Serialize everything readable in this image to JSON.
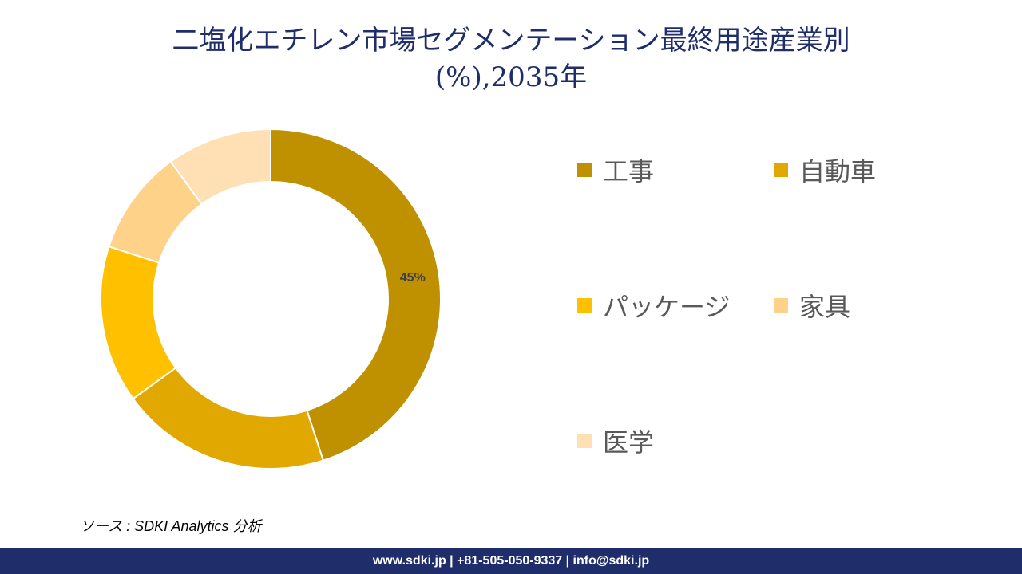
{
  "title_line1": "二塩化エチレン市場セグメンテーション最終用途産業別",
  "title_line2": "(%),2035年",
  "chart_data": {
    "type": "pie",
    "donut": true,
    "categories": [
      "工事",
      "自動車",
      "パッケージ",
      "家具",
      "医学"
    ],
    "values": [
      45,
      20,
      15,
      10,
      10
    ],
    "colors": [
      "#BF9000",
      "#E0A800",
      "#FFC000",
      "#FFD28A",
      "#FFE0B5"
    ],
    "data_labels": [
      "45%",
      "",
      "",
      "",
      ""
    ],
    "legend_placement": "right"
  },
  "source": "ソース : SDKI Analytics 分析",
  "footer": "www.sdki.jp | +81-505-050-9337 | info@sdki.jp"
}
